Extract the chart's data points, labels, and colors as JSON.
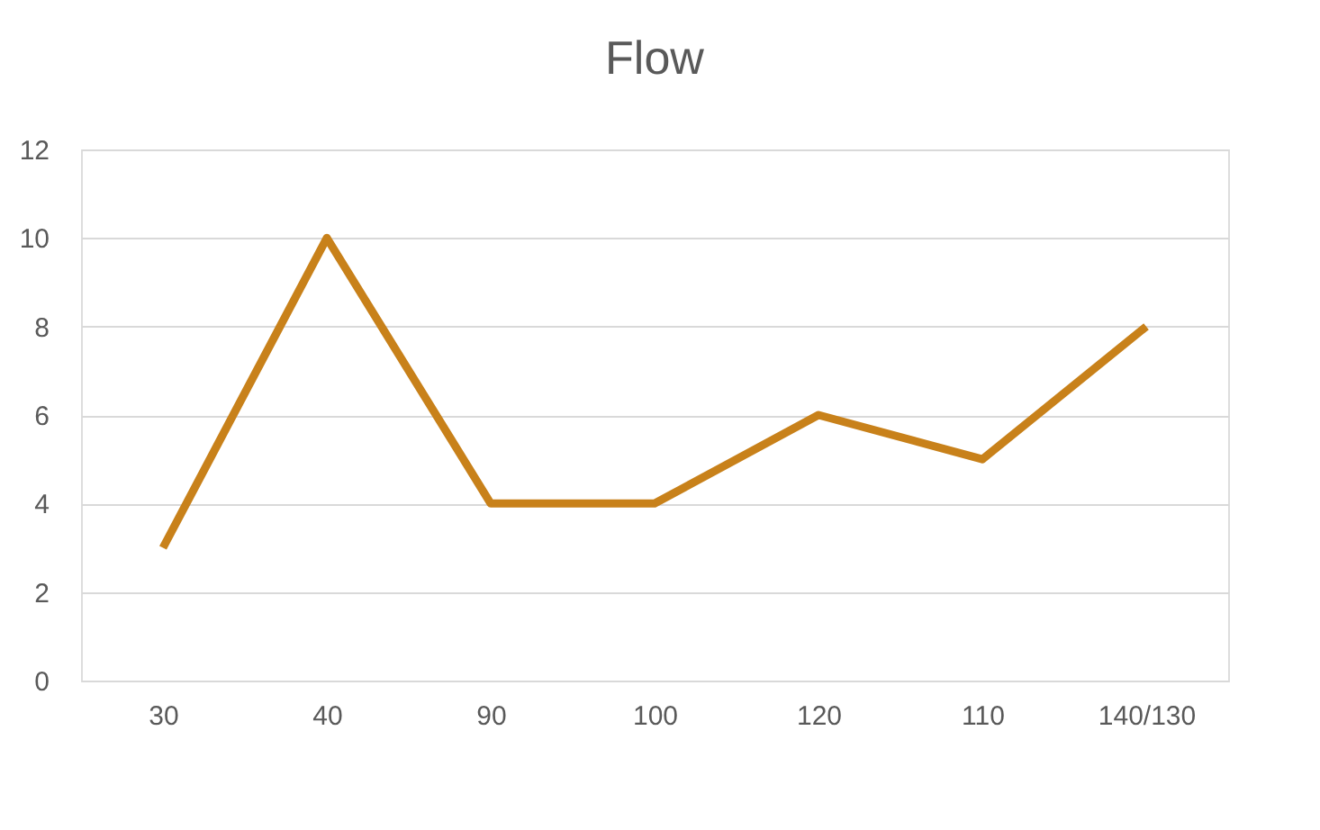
{
  "chart_data": {
    "type": "line",
    "title": "Flow",
    "categories": [
      "30",
      "40",
      "90",
      "100",
      "120",
      "110",
      "140/130"
    ],
    "series": [
      {
        "color": "#c8811a",
        "values": [
          3,
          10,
          4,
          4,
          6,
          5,
          8
        ]
      }
    ],
    "ylim": [
      0,
      12
    ],
    "yticks": [
      0,
      2,
      4,
      6,
      8,
      10,
      12
    ],
    "grid": "y",
    "marker": "none",
    "line_style": "solid",
    "legend": false
  }
}
